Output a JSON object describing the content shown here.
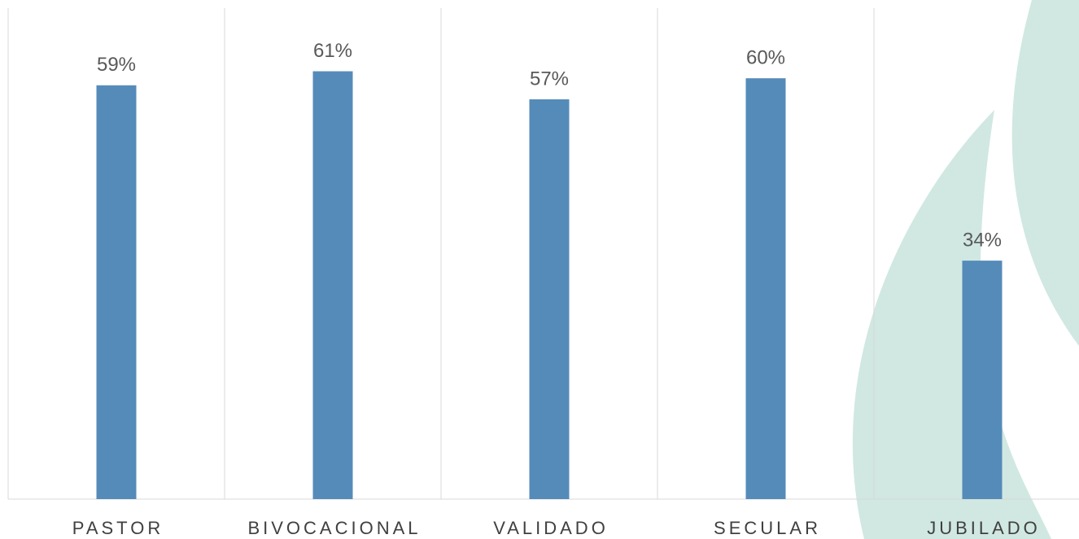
{
  "chart_data": {
    "type": "bar",
    "categories": [
      "PASTOR",
      "BIVOCACIONAL",
      "VALIDADO",
      "SECULAR",
      "JUBILADO"
    ],
    "values": [
      59,
      61,
      57,
      60,
      34
    ],
    "value_labels": [
      "59%",
      "61%",
      "57%",
      "60%",
      "34%"
    ],
    "color": "#558bb9",
    "ylim": [
      0,
      70
    ]
  }
}
